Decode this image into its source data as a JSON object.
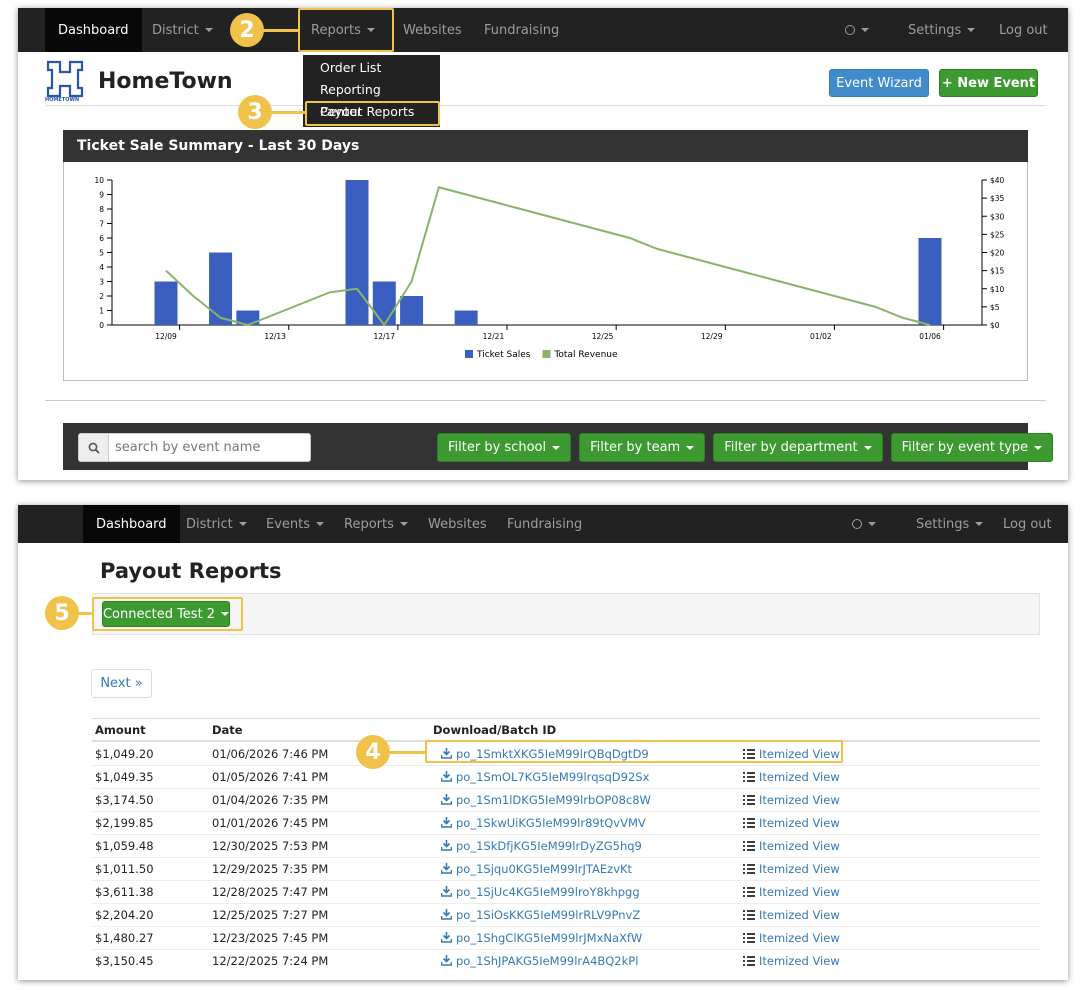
{
  "top_nav": {
    "items": [
      {
        "label": "Dashboard",
        "dropdown": false
      },
      {
        "label": "District",
        "dropdown": true
      },
      {
        "label": "Reports",
        "dropdown": true
      },
      {
        "label": "Websites",
        "dropdown": false
      },
      {
        "label": "Fundraising",
        "dropdown": false
      }
    ],
    "right": [
      {
        "label": "Settings",
        "dropdown": true
      },
      {
        "label": "Log out",
        "dropdown": false
      }
    ]
  },
  "reports_menu": [
    "Order List",
    "Reporting Center",
    "Payout Reports"
  ],
  "logo": {
    "caption": "HOMETOWN",
    "name": "HomeTown"
  },
  "header_buttons": [
    "Event Wizard",
    "+ New Event"
  ],
  "chart_data": {
    "type": "bar",
    "title": "Ticket Sale Summary - Last 30 Days",
    "categories": [
      "12/09",
      null,
      null,
      null,
      "12/13",
      null,
      null,
      null,
      "12/17",
      null,
      null,
      null,
      "12/21",
      null,
      null,
      null,
      "12/25",
      null,
      null,
      null,
      "12/29",
      null,
      null,
      null,
      "01/02",
      null,
      null,
      null,
      "01/06"
    ],
    "series": [
      {
        "name": "Ticket Sales",
        "type": "bar",
        "color": "#3a5fbf",
        "values": [
          3,
          0,
          5,
          1,
          0,
          0,
          0,
          10,
          3,
          2,
          0,
          1,
          0,
          0,
          0,
          0,
          0,
          0,
          0,
          0,
          0,
          0,
          0,
          0,
          0,
          0,
          0,
          0,
          6
        ]
      },
      {
        "name": "Total Revenue",
        "type": "line",
        "axis": "y2",
        "color": "#86b46a",
        "values": [
          15,
          8,
          2,
          0,
          3,
          6,
          9,
          10,
          0,
          12,
          38,
          36,
          34,
          32,
          30,
          28,
          26,
          24,
          21,
          19,
          17,
          15,
          13,
          11,
          9,
          7,
          5,
          2,
          0
        ]
      }
    ],
    "ylim": [
      0,
      10
    ],
    "yticks": [
      0,
      1,
      2,
      3,
      4,
      5,
      6,
      7,
      8,
      9,
      10
    ],
    "y2lim": [
      0,
      40
    ],
    "y2ticks": [
      {
        "value": 0,
        "label": "$0"
      },
      {
        "value": 5,
        "label": "$5"
      },
      {
        "value": 10,
        "label": "$10"
      },
      {
        "value": 15,
        "label": "$15"
      },
      {
        "value": 20,
        "label": "$20"
      },
      {
        "value": 25,
        "label": "$25"
      },
      {
        "value": 30,
        "label": "$30"
      },
      {
        "value": 35,
        "label": "$35"
      },
      {
        "value": 40,
        "label": "$40"
      }
    ],
    "legend": "bottom"
  },
  "search_placeholder": "search by event name",
  "filters": [
    "Filter by school",
    "Filter by team",
    "Filter by department",
    "Filter by event type"
  ],
  "bottom_nav": {
    "items": [
      {
        "label": "Dashboard",
        "dropdown": false
      },
      {
        "label": "District",
        "dropdown": true
      },
      {
        "label": "Events",
        "dropdown": true
      },
      {
        "label": "Reports",
        "dropdown": true
      },
      {
        "label": "Websites",
        "dropdown": false
      },
      {
        "label": "Fundraising",
        "dropdown": false
      }
    ],
    "right": [
      {
        "label": "Settings",
        "dropdown": true
      },
      {
        "label": "Log out",
        "dropdown": false
      }
    ]
  },
  "page_title": "Payout Reports",
  "account_button": "Connected Test 2",
  "pager": "Next »",
  "table": {
    "headers": [
      "Amount",
      "Date",
      "Download/Batch ID"
    ],
    "rows": [
      [
        "$1,049.20",
        "01/06/2026 7:46 PM",
        "po_1SmktXKG5IeM99lrQBqDgtD9",
        "Itemized View"
      ],
      [
        "$1,049.35",
        "01/05/2026 7:41 PM",
        "po_1SmOL7KG5IeM99lrqsqD92Sx",
        "Itemized View"
      ],
      [
        "$3,174.50",
        "01/04/2026 7:35 PM",
        "po_1Sm1lDKG5IeM99lrbOP08c8W",
        "Itemized View"
      ],
      [
        "$2,199.85",
        "01/01/2026 7:45 PM",
        "po_1SkwUiKG5IeM99lr89tQvVMV",
        "Itemized View"
      ],
      [
        "$1,059.48",
        "12/30/2025 7:53 PM",
        "po_1SkDfjKG5IeM99lrDyZG5hq9",
        "Itemized View"
      ],
      [
        "$1,011.50",
        "12/29/2025 7:35 PM",
        "po_1Sjqu0KG5IeM99lrJTAEzvKt",
        "Itemized View"
      ],
      [
        "$3,611.38",
        "12/28/2025 7:47 PM",
        "po_1SjUc4KG5IeM99lroY8khpgg",
        "Itemized View"
      ],
      [
        "$2,204.20",
        "12/25/2025 7:27 PM",
        "po_1SiOsKKG5IeM99lrRLV9PnvZ",
        "Itemized View"
      ],
      [
        "$1,480.27",
        "12/23/2025 7:45 PM",
        "po_1ShgClKG5IeM99lrJMxNaXfW",
        "Itemized View"
      ],
      [
        "$3,150.45",
        "12/22/2025 7:24 PM",
        "po_1ShJPAKG5IeM99lrA4BQ2kPl",
        "Itemized View"
      ]
    ]
  },
  "callouts": [
    "2",
    "3",
    "4",
    "5"
  ]
}
